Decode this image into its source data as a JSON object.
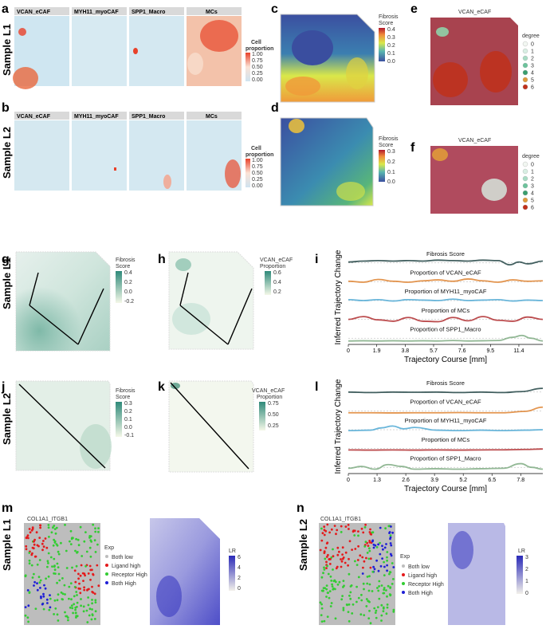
{
  "panel_letters": [
    "a",
    "b",
    "c",
    "d",
    "e",
    "f",
    "g",
    "h",
    "i",
    "j",
    "k",
    "l",
    "m",
    "n"
  ],
  "row_labels": [
    "Sample L1",
    "Sample L2",
    "Sample L1",
    "Sample L2",
    "Sample L1",
    "Sample L2"
  ],
  "panel_a": {
    "strips": [
      "VCAN_eCAF",
      "MYH11_myoCAF",
      "SPP1_Macro",
      "MCs"
    ],
    "legend_title": [
      "Cell",
      "proportion"
    ],
    "legend_ticks": [
      "1.00",
      "0.75",
      "0.50",
      "0.25",
      "0.00"
    ]
  },
  "panel_b": {
    "strips": [
      "VCAN_eCAF",
      "MYH11_myoCAF",
      "SPP1_Macro",
      "MCs"
    ],
    "legend_title": [
      "Cell",
      "proportion"
    ],
    "legend_ticks": [
      "1.00",
      "0.75",
      "0.50",
      "0.25",
      "0.00"
    ]
  },
  "panel_c": {
    "legend_title": [
      "Fibrosis",
      "Score"
    ],
    "legend_ticks": [
      "0.4",
      "0.3",
      "0.2",
      "0.1",
      "0.0"
    ]
  },
  "panel_d": {
    "legend_title": [
      "Fibrosis",
      "Score"
    ],
    "legend_ticks": [
      "0.3",
      "0.2",
      "0.1",
      "0.0"
    ]
  },
  "panel_e": {
    "title": "VCAN_eCAF",
    "legend_title": "degree",
    "legend_ticks": [
      "0",
      "1",
      "2",
      "3",
      "4",
      "5",
      "6"
    ]
  },
  "panel_f": {
    "title": "VCAN_eCAF",
    "legend_title": "degree",
    "legend_ticks": [
      "0",
      "1",
      "2",
      "3",
      "4",
      "5",
      "6"
    ]
  },
  "panel_g": {
    "legend_title": [
      "Fibrosis",
      "Score"
    ],
    "legend_ticks": [
      "0.4",
      "0.2",
      "0.0",
      "-0.2"
    ]
  },
  "panel_h": {
    "legend_title": [
      "VCAN_eCAF",
      "Proportion"
    ],
    "legend_ticks": [
      "0.6",
      "0.4",
      "0.2"
    ]
  },
  "panel_j": {
    "legend_title": [
      "Fibrosis",
      "Score"
    ],
    "legend_ticks": [
      "0.3",
      "0.2",
      "0.1",
      "0.0",
      "-0.1"
    ]
  },
  "panel_k": {
    "legend_title": [
      "VCAN_eCAF",
      "Proportion"
    ],
    "legend_ticks": [
      "0.75",
      "0.50",
      "0.25"
    ]
  },
  "panel_m": {
    "title": "COL1A1_ITGB1",
    "legend_title": "Exp",
    "legend_items": [
      "Both low",
      "Ligand high",
      "Receptor High",
      "Both High"
    ],
    "lr_title": "LR",
    "lr_ticks": [
      "6",
      "4",
      "2",
      "0"
    ]
  },
  "panel_n": {
    "title": "COL1A1_ITGB1",
    "legend_title": "Exp",
    "legend_items": [
      "Both low",
      "Ligand high",
      "Receptor High",
      "Both High"
    ],
    "lr_title": "LR",
    "lr_ticks": [
      "3",
      "2",
      "1",
      "0"
    ]
  },
  "colors": {
    "fibrosis_low": "#3b4fa0",
    "fibrosis_mid": "#d9e84a",
    "fibrosis_high": "#b2182b",
    "both_low": "#bdbdbd",
    "ligand_high": "#e41a1c",
    "receptor_high": "#33cc33",
    "both_high": "#1f1fd6",
    "track_fibrosis": "#2f4f4f",
    "track_vcan": "#e08a3c",
    "track_myh11": "#5aaed6",
    "track_mcs": "#b5383b",
    "track_spp1": "#86b08a"
  },
  "chart_data": [
    {
      "panel": "i",
      "type": "line",
      "ylabel": "Inferred Trajectory Change",
      "xlabel": "Trajectory Course [mm]",
      "x_ticks": [
        0,
        1.9,
        3.8,
        5.7,
        7.6,
        9.5,
        11.4
      ],
      "xlim": [
        0,
        13.0
      ],
      "series": [
        {
          "name": "Fibrosis Score",
          "color": "#2f4f4f",
          "x": [
            0,
            1,
            2,
            3,
            4,
            5,
            6,
            7,
            8,
            9,
            10,
            10.8,
            11.4,
            12,
            13
          ],
          "y": [
            0.6,
            0.7,
            0.75,
            0.7,
            0.75,
            0.7,
            0.8,
            0.75,
            0.7,
            0.8,
            0.75,
            0.3,
            0.6,
            0.4,
            0.7
          ]
        },
        {
          "name": "Proportion of VCAN_eCAF",
          "color": "#e08a3c",
          "x": [
            0,
            1,
            2,
            3,
            4,
            5,
            6,
            7,
            8,
            9,
            10,
            11,
            12,
            13
          ],
          "y": [
            0.55,
            0.45,
            0.75,
            0.55,
            0.45,
            0.6,
            0.7,
            0.55,
            0.8,
            0.6,
            0.45,
            0.7,
            0.55,
            0.6
          ]
        },
        {
          "name": "Proportion of MYH11_myoCAF",
          "color": "#5aaed6",
          "x": [
            0,
            1,
            2,
            3,
            4,
            5,
            6,
            7,
            8,
            9,
            10,
            11,
            12,
            13
          ],
          "y": [
            0.6,
            0.5,
            0.6,
            0.45,
            0.6,
            0.55,
            0.5,
            0.65,
            0.5,
            0.55,
            0.6,
            0.45,
            0.55,
            0.5
          ]
        },
        {
          "name": "Proportion of MCs",
          "color": "#b5383b",
          "x": [
            0,
            1,
            2,
            3,
            4,
            5,
            6,
            7,
            8,
            9,
            10,
            11,
            12,
            13
          ],
          "y": [
            0.5,
            0.8,
            0.45,
            0.3,
            0.7,
            0.3,
            0.25,
            0.7,
            0.35,
            0.8,
            0.4,
            0.3,
            0.75,
            0.5
          ]
        },
        {
          "name": "Proportion of SPP1_Macro",
          "color": "#86b08a",
          "x": [
            0,
            1,
            2,
            3,
            4,
            5,
            6,
            7,
            8,
            9,
            10,
            11,
            11.6,
            12.2,
            13
          ],
          "y": [
            0.2,
            0.22,
            0.2,
            0.22,
            0.2,
            0.22,
            0.2,
            0.25,
            0.2,
            0.22,
            0.25,
            0.6,
            0.8,
            0.5,
            0.2
          ]
        }
      ]
    },
    {
      "panel": "l",
      "type": "line",
      "ylabel": "Inferred Trajectory Change",
      "xlabel": "Trajectory Course [mm]",
      "x_ticks": [
        0,
        1.3,
        2.6,
        3.9,
        5.2,
        6.5,
        7.8
      ],
      "xlim": [
        0,
        8.8
      ],
      "series": [
        {
          "name": "Fibrosis Score",
          "color": "#2f4f4f",
          "x": [
            0,
            1,
            2,
            3,
            4,
            5,
            6,
            7,
            7.8,
            8.8
          ],
          "y": [
            0.5,
            0.45,
            0.5,
            0.48,
            0.5,
            0.45,
            0.5,
            0.45,
            0.55,
            0.9
          ]
        },
        {
          "name": "Proportion of VCAN_eCAF",
          "color": "#e08a3c",
          "x": [
            0,
            1,
            2,
            3,
            4,
            5,
            6,
            7,
            8,
            8.8
          ],
          "y": [
            0.3,
            0.3,
            0.28,
            0.3,
            0.3,
            0.32,
            0.3,
            0.3,
            0.45,
            0.9
          ]
        },
        {
          "name": "Proportion of MYH11_myoCAF",
          "color": "#5aaed6",
          "x": [
            0,
            1,
            1.5,
            2,
            2.5,
            3,
            4,
            5,
            6,
            7,
            8,
            8.8
          ],
          "y": [
            0.4,
            0.45,
            0.7,
            0.9,
            0.6,
            0.75,
            0.45,
            0.4,
            0.45,
            0.4,
            0.45,
            0.5
          ]
        },
        {
          "name": "Proportion of MCs",
          "color": "#b5383b",
          "x": [
            0,
            1,
            2,
            3,
            4,
            5,
            6,
            7,
            8,
            8.8
          ],
          "y": [
            0.35,
            0.33,
            0.35,
            0.33,
            0.35,
            0.33,
            0.35,
            0.36,
            0.4,
            0.45
          ]
        },
        {
          "name": "Proportion of SPP1_Macro",
          "color": "#86b08a",
          "x": [
            0,
            0.6,
            1.2,
            1.8,
            2.4,
            3,
            3.9,
            5,
            6,
            7,
            7.8,
            8.3,
            8.8
          ],
          "y": [
            0.4,
            0.6,
            0.3,
            0.8,
            0.6,
            0.3,
            0.35,
            0.3,
            0.35,
            0.4,
            0.9,
            0.5,
            0.3
          ]
        }
      ]
    }
  ]
}
